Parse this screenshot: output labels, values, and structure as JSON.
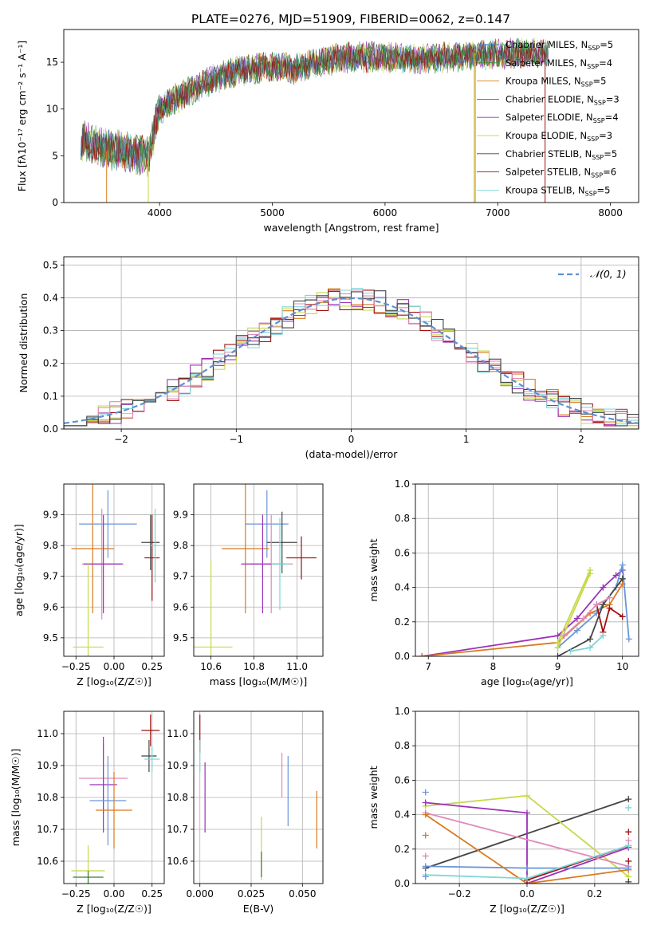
{
  "figure_title": "PLATE=0276, MJD=51909, FIBERID=0062, z=0.147",
  "colors": {
    "Chabrier MILES": "#4b79b8",
    "Salpeter MILES": "#2f8f2f",
    "Kroupa MILES": "#d97a1e",
    "Chabrier ELODIE": "#3a7a3a",
    "Salpeter ELODIE": "#9b30b8",
    "Kroupa ELODIE": "#c8d84a",
    "Chabrier STELIB": "#444444",
    "Salpeter STELIB": "#a01010",
    "Kroupa STELIB": "#7fd6d6",
    "extra_blue": "#6a95d8",
    "extra_pink": "#e08ab8",
    "gaussian": "#5f8fd0"
  },
  "chart_data": [
    {
      "type": "line",
      "title": "PLATE=0276, MJD=51909, FIBERID=0062, z=0.147",
      "xlabel": "wavelength [Angstrom, rest frame]",
      "ylabel": "Flux [fλ10⁻¹⁷ erg cm⁻² s⁻¹ A⁻¹]",
      "xlim": [
        3150,
        8250
      ],
      "ylim": [
        0,
        18.5
      ],
      "xticks": [
        4000,
        5000,
        6000,
        7000,
        8000
      ],
      "yticks": [
        0,
        5,
        10,
        15
      ],
      "grid": false,
      "legend_position": "top-right",
      "series": [
        {
          "name": "Chabrier MILES, N",
          "sub": "SSP",
          "suffix": "=5"
        },
        {
          "name": "Salpeter MILES, N",
          "sub": "SSP",
          "suffix": "=4"
        },
        {
          "name": "Kroupa MILES, N",
          "sub": "SSP",
          "suffix": "=5"
        },
        {
          "name": "Chabrier ELODIE, N",
          "sub": "SSP",
          "suffix": "=3"
        },
        {
          "name": "Salpeter ELODIE, N",
          "sub": "SSP",
          "suffix": "=4"
        },
        {
          "name": "Kroupa ELODIE, N",
          "sub": "SSP",
          "suffix": "=3"
        },
        {
          "name": "Chabrier STELIB, N",
          "sub": "SSP",
          "suffix": "=5"
        },
        {
          "name": "Salpeter STELIB, N",
          "sub": "SSP",
          "suffix": "=6"
        },
        {
          "name": "Kroupa STELIB, N",
          "sub": "SSP",
          "suffix": "=5"
        }
      ],
      "continuum": {
        "x": [
          3300,
          3400,
          3500,
          3600,
          3700,
          3800,
          3900,
          4000,
          4200,
          4400,
          4600,
          4800,
          5000,
          5200,
          5400,
          5600,
          5800,
          6000,
          6200,
          6400,
          6600,
          6800,
          7000,
          7200,
          7400
        ],
        "y": [
          6.8,
          6.2,
          5.8,
          5.6,
          5.3,
          5.2,
          5.0,
          10.0,
          11.5,
          12.8,
          13.8,
          14.3,
          14.5,
          14.3,
          15.0,
          15.4,
          15.6,
          15.5,
          15.3,
          15.4,
          15.6,
          15.8,
          15.8,
          16.0,
          16.0
        ]
      },
      "noise_amplitude": 1.5
    },
    {
      "type": "histogram",
      "xlabel": "(data-model)/error",
      "ylabel": "Normed distribution",
      "xlim": [
        -2.5,
        2.5
      ],
      "ylim": [
        0,
        0.525
      ],
      "xticks": [
        -2,
        -1,
        0,
        1,
        2
      ],
      "yticks": [
        0.0,
        0.1,
        0.2,
        0.3,
        0.4,
        0.5
      ],
      "grid": true,
      "legend_position": "top-right",
      "legend_label": "𝒩(0, 1)",
      "bin_width": 0.1,
      "bin_range": [
        -2.5,
        2.5
      ],
      "hist_colors": [
        "Kroupa MILES",
        "Salpeter ELODIE",
        "Kroupa ELODIE",
        "Salpeter STELIB",
        "Kroupa STELIB",
        "extra_pink",
        "Chabrier STELIB"
      ],
      "hist_noise": 0.035
    },
    {
      "type": "errorbar",
      "xlabel": "Z [log₁₀(Z/Z☉)]",
      "ylabel": "age  [log₁₀(age/yr)]",
      "xlim": [
        -0.33,
        0.33
      ],
      "ylim": [
        9.44,
        10.0
      ],
      "xticks": [
        -0.25,
        0.0,
        0.25
      ],
      "yticks": [
        9.5,
        9.6,
        9.7,
        9.8,
        9.9
      ],
      "grid": true,
      "points": [
        {
          "color": "extra_blue",
          "x": -0.04,
          "xerr": 0.19,
          "y": 9.87,
          "yerr": 0.11
        },
        {
          "color": "Chabrier STELIB",
          "x": 0.24,
          "xerr": 0.06,
          "y": 9.81,
          "yerr": 0.09
        },
        {
          "color": "Kroupa MILES",
          "x": -0.14,
          "xerr": 0.14,
          "y": 9.79,
          "yerr": 0.21
        },
        {
          "color": "Salpeter STELIB",
          "x": 0.25,
          "xerr": 0.05,
          "y": 9.76,
          "yerr": 0.14
        },
        {
          "color": "extra_pink",
          "x": -0.08,
          "xerr": 0.13,
          "y": 9.74,
          "yerr": 0.18
        },
        {
          "color": "Salpeter ELODIE",
          "x": -0.07,
          "xerr": 0.13,
          "y": 9.74,
          "yerr": 0.16
        },
        {
          "color": "Kroupa STELIB",
          "x": 0.27,
          "xerr": 0.03,
          "y": 9.8,
          "yerr": 0.12
        },
        {
          "color": "Kroupa ELODIE",
          "x": -0.17,
          "xerr": 0.1,
          "y": 9.47,
          "yerr": 0.27
        }
      ]
    },
    {
      "type": "errorbar",
      "xlabel": "mass [log₁₀(M/M☉)]",
      "ylabel": "",
      "xlim": [
        10.52,
        11.12
      ],
      "ylim": [
        9.44,
        10.0
      ],
      "xticks": [
        10.6,
        10.8,
        11.0
      ],
      "yticks": [
        9.5,
        9.6,
        9.7,
        9.8,
        9.9
      ],
      "grid": true,
      "points": [
        {
          "color": "extra_blue",
          "x": 10.86,
          "xerr": 0.1,
          "y": 9.87,
          "yerr": 0.11
        },
        {
          "color": "Chabrier STELIB",
          "x": 10.93,
          "xerr": 0.07,
          "y": 9.81,
          "yerr": 0.1
        },
        {
          "color": "Kroupa MILES",
          "x": 10.76,
          "xerr": 0.11,
          "y": 9.79,
          "yerr": 0.21
        },
        {
          "color": "Salpeter STELIB",
          "x": 11.02,
          "xerr": 0.07,
          "y": 9.76,
          "yerr": 0.07
        },
        {
          "color": "extra_pink",
          "x": 10.88,
          "xerr": 0.1,
          "y": 9.74,
          "yerr": 0.16
        },
        {
          "color": "Salpeter ELODIE",
          "x": 10.84,
          "xerr": 0.1,
          "y": 9.74,
          "yerr": 0.16
        },
        {
          "color": "Kroupa STELIB",
          "x": 10.92,
          "xerr": 0.04,
          "y": 9.74,
          "yerr": 0.15
        },
        {
          "color": "Kroupa ELODIE",
          "x": 10.6,
          "xerr": 0.1,
          "y": 9.47,
          "yerr": 0.28
        }
      ]
    },
    {
      "type": "line",
      "xlabel": "age  [log₁₀(age/yr)]",
      "ylabel": "mass weight",
      "xlim": [
        6.8,
        10.25
      ],
      "ylim": [
        0,
        1
      ],
      "xticks": [
        7,
        8,
        9,
        10
      ],
      "yticks": [
        0.0,
        0.2,
        0.4,
        0.6,
        0.8,
        1.0
      ],
      "grid": true,
      "series": [
        {
          "color": "Salpeter ELODIE",
          "x": [
            6.9,
            9.0,
            9.3,
            9.7,
            9.9,
            10.0
          ],
          "y": [
            0.0,
            0.12,
            0.22,
            0.4,
            0.47,
            0.5
          ]
        },
        {
          "color": "Kroupa MILES",
          "x": [
            6.9,
            9.0,
            9.5,
            9.8,
            10.0
          ],
          "y": [
            0.0,
            0.08,
            0.25,
            0.3,
            0.42
          ]
        },
        {
          "color": "extra_blue",
          "x": [
            9.0,
            9.3,
            9.6,
            9.9,
            10.0,
            10.1
          ],
          "y": [
            0.05,
            0.15,
            0.25,
            0.4,
            0.53,
            0.1
          ]
        },
        {
          "color": "Kroupa ELODIE",
          "x": [
            9.0,
            9.5,
            9.5,
            9.0
          ],
          "y": [
            0.08,
            0.5,
            0.48,
            0.05
          ]
        },
        {
          "color": "Chabrier STELIB",
          "x": [
            9.0,
            9.5,
            9.7,
            10.0
          ],
          "y": [
            0.0,
            0.1,
            0.3,
            0.45
          ]
        },
        {
          "color": "Salpeter STELIB",
          "x": [
            9.6,
            9.7,
            9.8,
            10.0
          ],
          "y": [
            0.3,
            0.14,
            0.28,
            0.23
          ]
        },
        {
          "color": "extra_pink",
          "x": [
            9.1,
            9.4,
            9.6,
            9.8
          ],
          "y": [
            0.12,
            0.22,
            0.3,
            0.34
          ]
        },
        {
          "color": "Kroupa STELIB",
          "x": [
            9.2,
            9.5,
            9.7
          ],
          "y": [
            0.03,
            0.05,
            0.12
          ]
        }
      ]
    },
    {
      "type": "errorbar",
      "xlabel": "Z [log₁₀(Z/Z☉)]",
      "ylabel": "mass [log₁₀(M/M☉)]",
      "xlim": [
        -0.33,
        0.33
      ],
      "ylim": [
        10.53,
        11.07
      ],
      "xticks": [
        -0.25,
        0.0,
        0.25
      ],
      "yticks": [
        10.6,
        10.7,
        10.8,
        10.9,
        11.0
      ],
      "grid": true,
      "points": [
        {
          "color": "Salpeter STELIB",
          "x": 0.24,
          "xerr": 0.06,
          "y": 11.01,
          "yerr": 0.05
        },
        {
          "color": "Chabrier STELIB",
          "x": 0.23,
          "xerr": 0.05,
          "y": 10.93,
          "yerr": 0.05
        },
        {
          "color": "Kroupa STELIB",
          "x": 0.25,
          "xerr": 0.05,
          "y": 10.92,
          "yerr": 0.04
        },
        {
          "color": "extra_pink",
          "x": -0.07,
          "xerr": 0.16,
          "y": 10.86,
          "yerr": 0.11
        },
        {
          "color": "Salpeter ELODIE",
          "x": -0.07,
          "xerr": 0.09,
          "y": 10.84,
          "yerr": 0.15
        },
        {
          "color": "extra_blue",
          "x": -0.04,
          "xerr": 0.12,
          "y": 10.79,
          "yerr": 0.14
        },
        {
          "color": "Kroupa MILES",
          "x": 0.0,
          "xerr": 0.12,
          "y": 10.76,
          "yerr": 0.12
        },
        {
          "color": "Kroupa ELODIE",
          "x": -0.17,
          "xerr": 0.11,
          "y": 10.57,
          "yerr": 0.08
        },
        {
          "color": "Chabrier ELODIE",
          "x": -0.17,
          "xerr": 0.1,
          "y": 10.55,
          "yerr": 0.02
        }
      ]
    },
    {
      "type": "errorbar",
      "xlabel": "E(B-V)",
      "ylabel": "",
      "xlim": [
        -0.003,
        0.06
      ],
      "ylim": [
        10.53,
        11.07
      ],
      "xticks": [
        0.0,
        0.025,
        0.05
      ],
      "yticks": [
        10.6,
        10.7,
        10.8,
        10.9,
        11.0
      ],
      "grid": true,
      "points": [
        {
          "color": "Salpeter STELIB",
          "x": 0.0,
          "y": 11.0,
          "yerr": 0.06
        },
        {
          "color": "Kroupa STELIB",
          "x": 0.0,
          "y": 10.93,
          "yerr": 0.05
        },
        {
          "color": "Salpeter ELODIE",
          "x": 0.0025,
          "y": 10.8,
          "yerr": 0.11
        },
        {
          "color": "extra_pink",
          "x": 0.04,
          "y": 10.87,
          "yerr": 0.07
        },
        {
          "color": "extra_blue",
          "x": 0.043,
          "y": 10.82,
          "yerr": 0.11
        },
        {
          "color": "Kroupa MILES",
          "x": 0.057,
          "y": 10.73,
          "yerr": 0.09
        },
        {
          "color": "Kroupa ELODIE",
          "x": 0.03,
          "y": 10.64,
          "yerr": 0.1
        },
        {
          "color": "Chabrier ELODIE",
          "x": 0.03,
          "y": 10.59,
          "yerr": 0.04
        }
      ]
    },
    {
      "type": "line",
      "xlabel": "Z [log₁₀(Z/Z☉)]",
      "ylabel": "mass weight",
      "xlim": [
        -0.33,
        0.33
      ],
      "ylim": [
        0,
        1
      ],
      "xticks": [
        -0.2,
        0.0,
        0.2
      ],
      "yticks": [
        0.0,
        0.2,
        0.4,
        0.6,
        0.8,
        1.0
      ],
      "grid": true,
      "series": [
        {
          "color": "Chabrier STELIB",
          "x": [
            -0.3,
            0.3
          ],
          "y": [
            0.09,
            0.49
          ]
        },
        {
          "color": "Kroupa ELODIE",
          "x": [
            -0.3,
            0.0,
            0.3
          ],
          "y": [
            0.45,
            0.51,
            0.04
          ]
        },
        {
          "color": "Salpeter ELODIE",
          "x": [
            -0.3,
            0.0,
            0.0,
            0.3
          ],
          "y": [
            0.47,
            0.41,
            0.0,
            0.21
          ]
        },
        {
          "color": "extra_pink",
          "x": [
            -0.3,
            0.3
          ],
          "y": [
            0.41,
            0.1
          ]
        },
        {
          "color": "Kroupa MILES",
          "x": [
            -0.3,
            0.0,
            0.3
          ],
          "y": [
            0.4,
            0.0,
            0.08
          ]
        },
        {
          "color": "extra_blue",
          "x": [
            -0.3,
            0.0,
            0.3
          ],
          "y": [
            0.1,
            0.09,
            0.09
          ]
        },
        {
          "color": "Salpeter STELIB",
          "x": [
            0.0,
            0.3
          ],
          "y": [
            0.02,
            0.22
          ]
        },
        {
          "color": "Kroupa STELIB",
          "x": [
            -0.3,
            0.0,
            0.3
          ],
          "y": [
            0.05,
            0.03,
            0.22
          ]
        }
      ],
      "markers": [
        {
          "color": "extra_blue",
          "x": -0.3,
          "y": 0.53
        },
        {
          "color": "extra_blue",
          "x": -0.3,
          "y": 0.04
        },
        {
          "color": "Kroupa MILES",
          "x": -0.3,
          "y": 0.28
        },
        {
          "color": "extra_pink",
          "x": -0.3,
          "y": 0.16
        },
        {
          "color": "Kroupa STELIB",
          "x": 0.3,
          "y": 0.44
        },
        {
          "color": "Salpeter STELIB",
          "x": 0.3,
          "y": 0.3
        },
        {
          "color": "Salpeter STELIB",
          "x": 0.3,
          "y": 0.13
        },
        {
          "color": "extra_pink",
          "x": 0.3,
          "y": 0.25
        },
        {
          "color": "Chabrier STELIB",
          "x": 0.3,
          "y": 0.01
        }
      ]
    }
  ]
}
